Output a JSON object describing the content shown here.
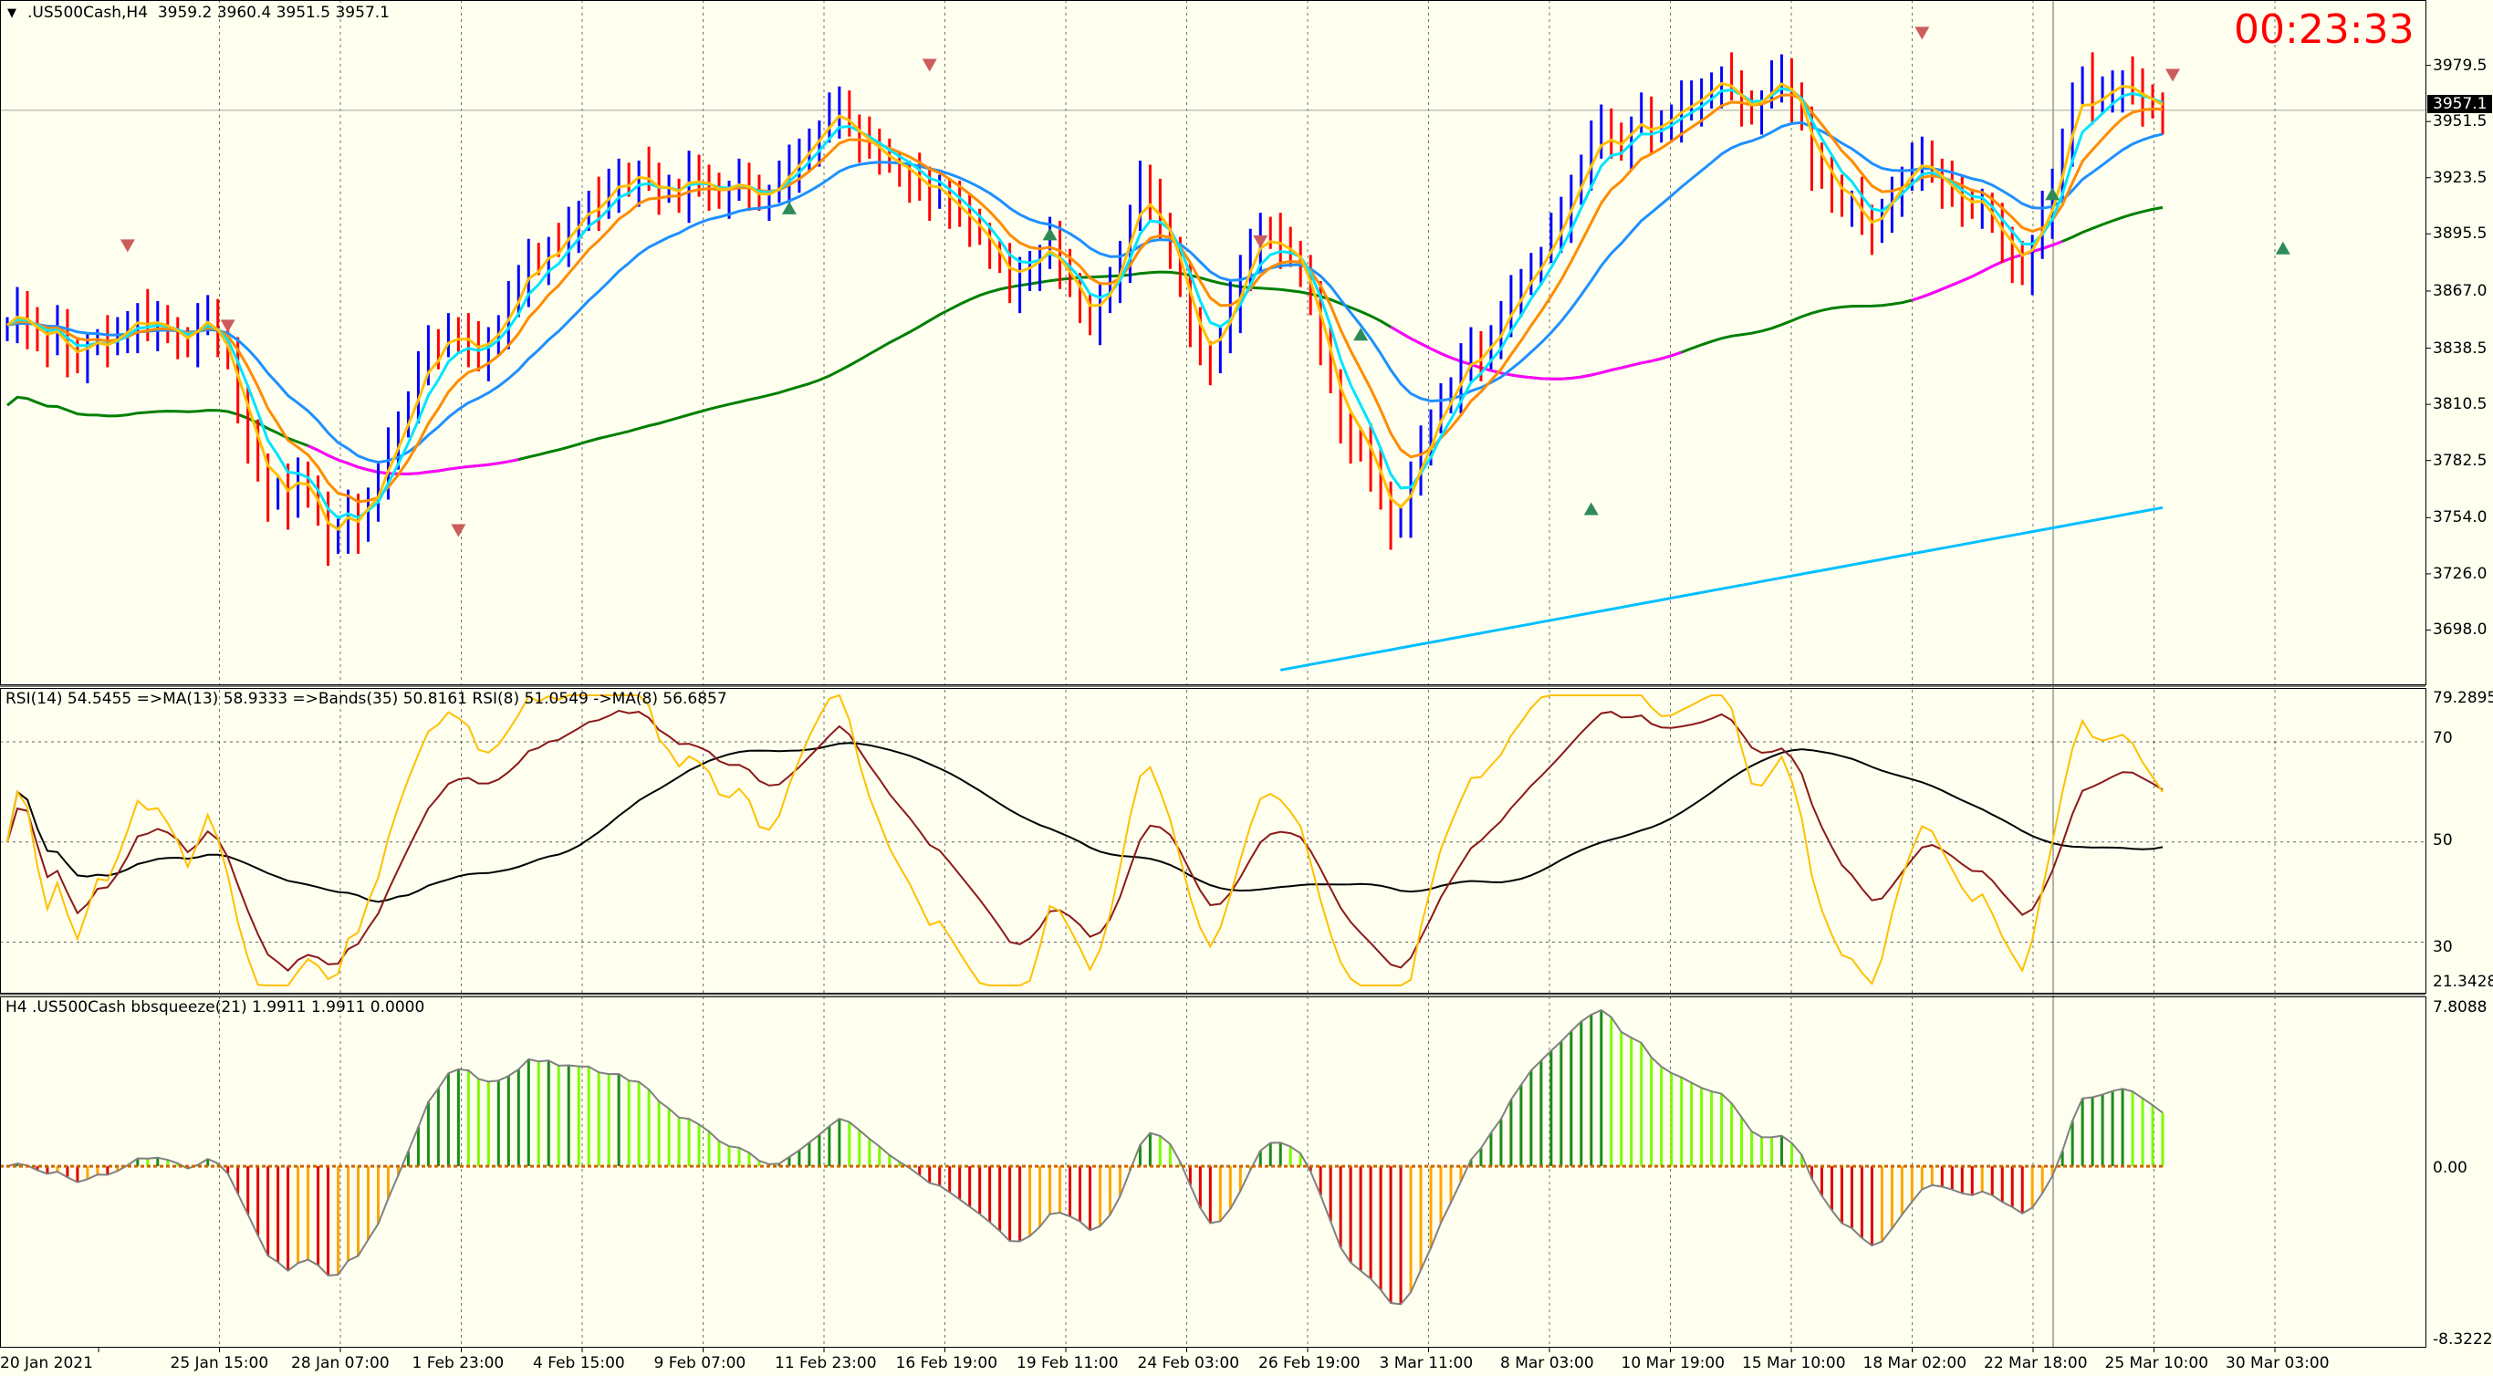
{
  "header": {
    "symbol_label": ".US500Cash,H4",
    "ohlc": "3959.2 3960.4 3951.5 3957.1",
    "menu_icon": "triangle-down-icon"
  },
  "timer": "00:23:33",
  "current_price": "3957.1",
  "rsi_panel": {
    "label": "RSI(14) 54.5455  =>MA(13) 58.9333  =>Bands(35) 50.8161  RSI(8) 51.0549  ->MA(8) 56.6857",
    "max": "79.2895",
    "min": "21.3428",
    "levels": [
      "70",
      "50",
      "30"
    ]
  },
  "squeeze_panel": {
    "label": "H4 .US500Cash bbsqueeze(21) 1.9911 1.9911 0.0000",
    "max": "7.8088",
    "zero": "0.00",
    "min": "-8.3222"
  },
  "colors": {
    "background": "#fffff0",
    "bull_bar": "#0000ff",
    "bear_bar": "#ff0000",
    "ma_fast": "#ffc000",
    "ma_cyan": "#00e5ff",
    "ma_orange": "#ff8c00",
    "ma_blue": "#1e90ff",
    "ma_green": "#007f00",
    "ma_magenta": "#ff00ff",
    "ma_lightblue": "#00bfff",
    "timer": "#ff0000"
  },
  "chart_data": {
    "type": "candlestick",
    "symbol": ".US500Cash",
    "timeframe": "H4",
    "price_axis_ticks": [
      3979.5,
      3951.5,
      3923.5,
      3895.5,
      3867.0,
      3838.5,
      3810.5,
      3782.5,
      3754.0,
      3726.0,
      3698.0
    ],
    "price_axis_labels": [
      "3979.5",
      "3951.5",
      "3923.5",
      "3895.5",
      "3867.0",
      "3838.5",
      "3810.5",
      "3782.5",
      "3754.0",
      "3726.0",
      "3698.0"
    ],
    "ylim": [
      3680,
      4003
    ],
    "x_labels": [
      "20 Jan 2021",
      "25 Jan 15:00",
      "28 Jan 07:00",
      "1 Feb 23:00",
      "4 Feb 15:00",
      "9 Feb 07:00",
      "11 Feb 23:00",
      "16 Feb 19:00",
      "19 Feb 11:00",
      "24 Feb 03:00",
      "26 Feb 19:00",
      "3 Mar 11:00",
      "8 Mar 03:00",
      "10 Mar 19:00",
      "15 Mar 10:00",
      "18 Mar 02:00",
      "22 Mar 18:00",
      "25 Mar 10:00",
      "30 Mar 03:00"
    ],
    "closes": [
      3850,
      3858,
      3852,
      3845,
      3842,
      3848,
      3836,
      3832,
      3840,
      3844,
      3839,
      3845,
      3850,
      3856,
      3850,
      3852,
      3848,
      3845,
      3840,
      3850,
      3856,
      3844,
      3832,
      3810,
      3795,
      3780,
      3765,
      3770,
      3760,
      3775,
      3770,
      3755,
      3740,
      3745,
      3760,
      3750,
      3765,
      3770,
      3790,
      3800,
      3812,
      3825,
      3840,
      3838,
      3850,
      3845,
      3843,
      3835,
      3842,
      3850,
      3860,
      3870,
      3885,
      3880,
      3890,
      3888,
      3900,
      3905,
      3912,
      3910,
      3918,
      3925,
      3920,
      3928,
      3922,
      3915,
      3918,
      3915,
      3925,
      3922,
      3920,
      3915,
      3918,
      3922,
      3918,
      3912,
      3915,
      3920,
      3930,
      3935,
      3942,
      3948,
      3955,
      3960,
      3950,
      3942,
      3938,
      3935,
      3930,
      3928,
      3925,
      3920,
      3915,
      3918,
      3910,
      3905,
      3900,
      3895,
      3888,
      3880,
      3870,
      3875,
      3880,
      3885,
      3892,
      3880,
      3870,
      3862,
      3850,
      3860,
      3870,
      3885,
      3905,
      3920,
      3915,
      3900,
      3890,
      3870,
      3850,
      3835,
      3830,
      3845,
      3860,
      3875,
      3890,
      3900,
      3895,
      3890,
      3885,
      3880,
      3860,
      3840,
      3820,
      3800,
      3795,
      3790,
      3780,
      3765,
      3750,
      3755,
      3770,
      3790,
      3800,
      3815,
      3820,
      3830,
      3840,
      3835,
      3845,
      3850,
      3865,
      3870,
      3880,
      3885,
      3895,
      3905,
      3918,
      3930,
      3940,
      3950,
      3945,
      3938,
      3950,
      3955,
      3945,
      3950,
      3955,
      3960,
      3962,
      3965,
      3970,
      3975,
      3968,
      3960,
      3955,
      3962,
      3970,
      3975,
      3965,
      3955,
      3930,
      3925,
      3918,
      3910,
      3912,
      3900,
      3895,
      3905,
      3918,
      3925,
      3930,
      3935,
      3928,
      3920,
      3915,
      3910,
      3908,
      3912,
      3900,
      3890,
      3885,
      3878,
      3890,
      3905,
      3918,
      3940,
      3965,
      3975,
      3960,
      3965,
      3970,
      3972,
      3968,
      3962,
      3960,
      3957
    ],
    "rsi": {
      "rsi14": 54.5455,
      "rsi14_ma13": 58.9333,
      "bands35": 50.8161,
      "rsi8": 51.0549,
      "rsi8_ma8": 56.6857,
      "levels": [
        70,
        50,
        30
      ],
      "ylim": [
        21.3428,
        79.2895
      ]
    },
    "bbsqueeze": {
      "period": 21,
      "values_label": [
        1.9911,
        1.9911,
        0.0
      ],
      "ylim": [
        -8.3222,
        7.8088
      ]
    }
  }
}
